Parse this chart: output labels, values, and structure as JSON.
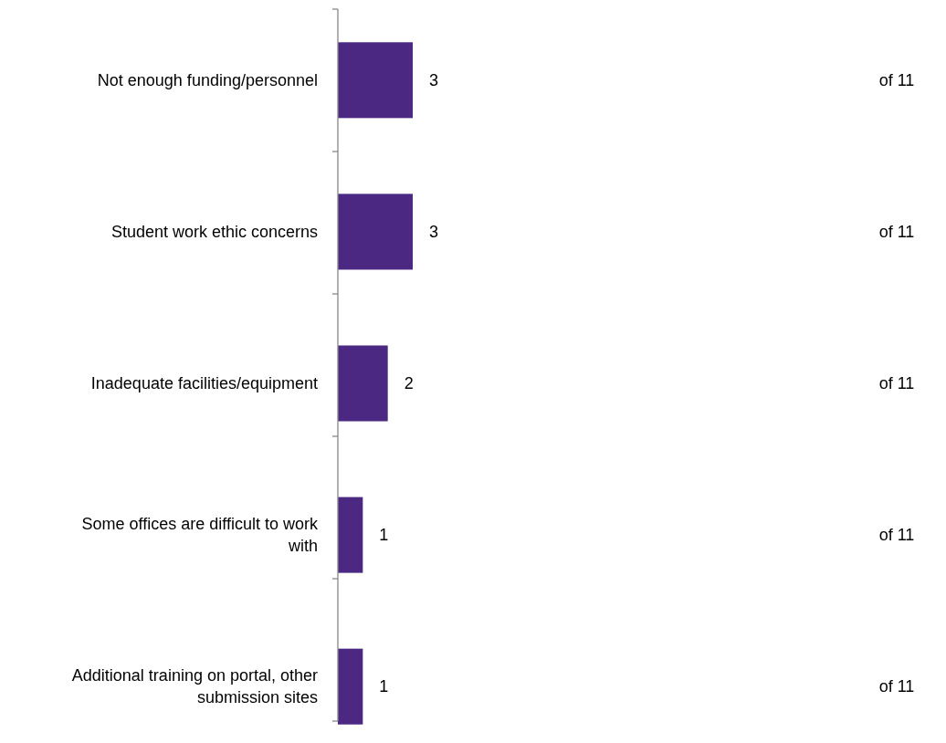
{
  "chart_data": {
    "type": "bar",
    "orientation": "horizontal",
    "categories": [
      "Not enough funding/personnel",
      "Student work ethic concerns",
      "Inadequate facilities/equipment",
      "Some offices are difficult to work with",
      "Additional training on portal, other submission sites"
    ],
    "values": [
      3,
      3,
      2,
      1,
      1
    ],
    "color": "#4b2882",
    "data_labels": true,
    "annotations": [
      "of 11",
      "of 11",
      "of 11",
      "of 11",
      "of 11"
    ]
  }
}
